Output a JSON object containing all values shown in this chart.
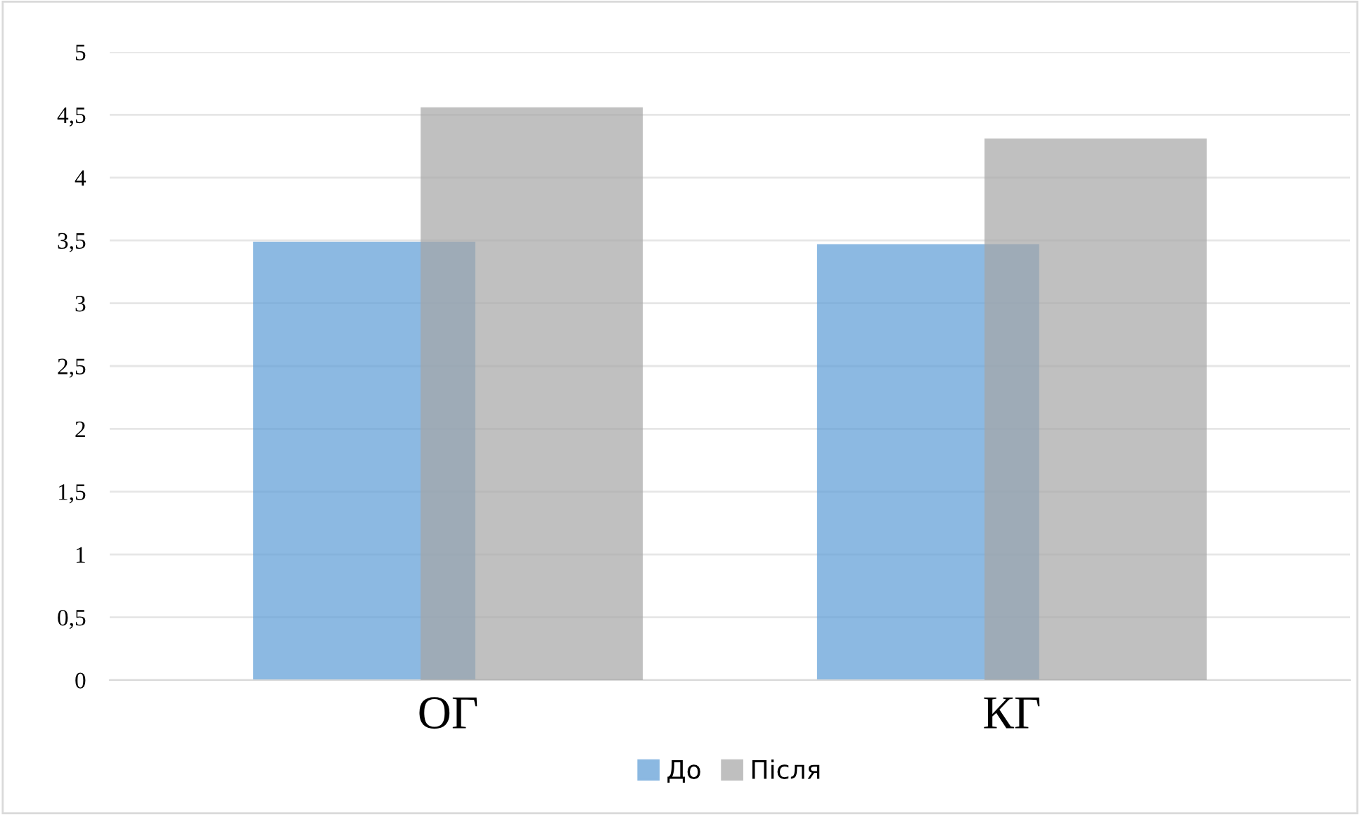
{
  "chart_data": {
    "type": "bar",
    "categories": [
      "ОГ",
      "КГ"
    ],
    "series": [
      {
        "name": "До",
        "color": "#5b9bd5",
        "values": [
          3.49,
          3.47
        ]
      },
      {
        "name": "Після",
        "color": "#a5a5a5",
        "values": [
          4.56,
          4.31
        ]
      }
    ],
    "ylim": [
      0,
      5
    ],
    "yticks": [
      0,
      {
        "value": 0.5,
        "label": "0,5"
      },
      1,
      {
        "value": 1.5,
        "label": "1,5"
      },
      2,
      {
        "value": 2.5,
        "label": "2,5"
      },
      3,
      {
        "value": 3.5,
        "label": "3,5"
      },
      4,
      {
        "value": 4.5,
        "label": "4,5"
      },
      5
    ],
    "grid": "y",
    "legend": "bottom"
  }
}
